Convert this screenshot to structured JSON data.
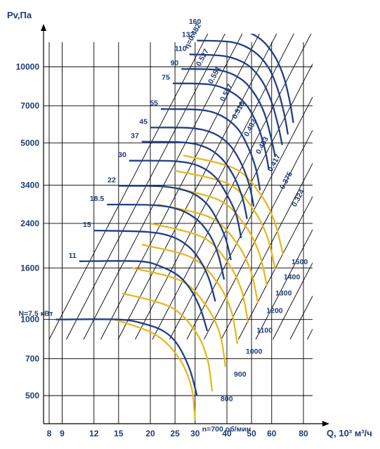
{
  "chart_data": {
    "type": "line",
    "title": "",
    "xlabel": "Q, 10³ м³/ч",
    "ylabel": "Pv,Па",
    "x_scale": "log",
    "y_scale": "log",
    "xlim": [
      7.8,
      88
    ],
    "ylim": [
      400,
      15000
    ],
    "x_ticks": [
      8,
      9,
      12,
      15,
      20,
      25,
      30,
      40,
      50,
      60,
      80
    ],
    "y_ticks": [
      500,
      700,
      1000,
      1600,
      2400,
      3400,
      5000,
      7000,
      10000
    ],
    "grid": true,
    "speed_curves": {
      "unit": "об/мин",
      "items": [
        {
          "n": 700,
          "label": "n=700 об/мин",
          "points": [
            [
              14.5,
              1000
            ],
            [
              21,
              870
            ],
            [
              26,
              700
            ],
            [
              29,
              540
            ],
            [
              30,
              400
            ]
          ]
        },
        {
          "n": 800,
          "label": "800",
          "points": [
            [
              15.5,
              1270
            ],
            [
              24,
              1120
            ],
            [
              30,
              900
            ],
            [
              33.5,
              700
            ],
            [
              35,
              520
            ]
          ]
        },
        {
          "n": 900,
          "label": "900",
          "points": [
            [
              17,
              1600
            ],
            [
              26.5,
              1420
            ],
            [
              33,
              1140
            ],
            [
              37.5,
              880
            ],
            [
              39.5,
              650
            ]
          ]
        },
        {
          "n": 1000,
          "label": "1000",
          "points": [
            [
              18.5,
              1980
            ],
            [
              29,
              1760
            ],
            [
              36.5,
              1410
            ],
            [
              41.5,
              1090
            ],
            [
              44,
              800
            ]
          ]
        },
        {
          "n": 1100,
          "label": "1100",
          "points": [
            [
              20,
              2400
            ],
            [
              32,
              2120
            ],
            [
              40,
              1700
            ],
            [
              45.5,
              1320
            ],
            [
              48.5,
              970
            ]
          ]
        },
        {
          "n": 1200,
          "label": "1200",
          "points": [
            [
              21.5,
              2850
            ],
            [
              34.5,
              2530
            ],
            [
              43.5,
              2020
            ],
            [
              49.5,
              1570
            ],
            [
              53,
              1160
            ]
          ]
        },
        {
          "n": 1300,
          "label": "1300",
          "points": [
            [
              23.5,
              3350
            ],
            [
              37.5,
              2960
            ],
            [
              47,
              2370
            ],
            [
              53.5,
              1840
            ],
            [
              57.5,
              1360
            ]
          ]
        },
        {
          "n": 1400,
          "label": "1400",
          "points": [
            [
              25,
              3880
            ],
            [
              40.5,
              3440
            ],
            [
              50.5,
              2750
            ],
            [
              57.5,
              2140
            ],
            [
              62,
              1580
            ]
          ]
        },
        {
          "n": 1500,
          "label": "1500",
          "points": [
            [
              27,
              4460
            ],
            [
              43,
              3950
            ],
            [
              54,
              3150
            ],
            [
              61.5,
              2450
            ],
            [
              66.5,
              1810
            ]
          ]
        }
      ]
    },
    "power_curves": {
      "unit": "кВт",
      "items": [
        {
          "N": 7.5,
          "label": "N=7,5 кВт",
          "points": [
            [
              8.5,
              1000
            ],
            [
              15,
              1000
            ],
            [
              19,
              960
            ],
            [
              22.5,
              900
            ],
            [
              25.5,
              800
            ],
            [
              28.5,
              640
            ],
            [
              30.5,
              500
            ]
          ]
        },
        {
          "N": 11,
          "label": "11",
          "points": [
            [
              10.5,
              1700
            ],
            [
              18,
              1700
            ],
            [
              22,
              1620
            ],
            [
              26,
              1480
            ],
            [
              29,
              1300
            ],
            [
              31.5,
              1100
            ],
            [
              33.5,
              900
            ]
          ]
        },
        {
          "N": 15,
          "label": "15",
          "points": [
            [
              12,
              2250
            ],
            [
              19.5,
              2220
            ],
            [
              24.5,
              2120
            ],
            [
              28.5,
              1930
            ],
            [
              31.5,
              1700
            ],
            [
              34,
              1450
            ],
            [
              36,
              1180
            ]
          ]
        },
        {
          "N": 18.5,
          "label": "18.5",
          "points": [
            [
              13.5,
              2850
            ],
            [
              21,
              2830
            ],
            [
              26.5,
              2700
            ],
            [
              31,
              2450
            ],
            [
              34.5,
              2130
            ],
            [
              37,
              1800
            ],
            [
              39,
              1440
            ]
          ]
        },
        {
          "N": 22,
          "label": "22",
          "points": [
            [
              15,
              3380
            ],
            [
              22.5,
              3360
            ],
            [
              28.5,
              3200
            ],
            [
              33,
              2900
            ],
            [
              36.5,
              2500
            ],
            [
              39.5,
              2100
            ],
            [
              41.5,
              1720
            ]
          ]
        },
        {
          "N": 30,
          "label": "30",
          "points": [
            [
              16.5,
              4250
            ],
            [
              25,
              4230
            ],
            [
              31,
              4050
            ],
            [
              36,
              3660
            ],
            [
              40,
              3120
            ],
            [
              43.5,
              2600
            ],
            [
              45.5,
              2100
            ]
          ]
        },
        {
          "N": 37,
          "label": "37",
          "points": [
            [
              18.5,
              5050
            ],
            [
              27,
              5020
            ],
            [
              33,
              4800
            ],
            [
              38,
              4350
            ],
            [
              42.5,
              3700
            ],
            [
              46,
              3040
            ],
            [
              48,
              2500
            ]
          ]
        },
        {
          "N": 45,
          "label": "45",
          "points": [
            [
              20,
              5750
            ],
            [
              29,
              5720
            ],
            [
              35.5,
              5450
            ],
            [
              41,
              4900
            ],
            [
              45.5,
              4150
            ],
            [
              49,
              3400
            ],
            [
              51,
              2800
            ]
          ]
        },
        {
          "N": 55,
          "label": "55",
          "points": [
            [
              22,
              6800
            ],
            [
              31.5,
              6750
            ],
            [
              38,
              6400
            ],
            [
              44,
              5700
            ],
            [
              48.5,
              4800
            ],
            [
              52,
              3950
            ],
            [
              54,
              3250
            ]
          ]
        },
        {
          "N": 75,
          "label": "75",
          "points": [
            [
              24.5,
              8600
            ],
            [
              34.5,
              8500
            ],
            [
              42,
              7900
            ],
            [
              48,
              7000
            ],
            [
              53,
              5800
            ],
            [
              56.5,
              4700
            ],
            [
              58.5,
              3900
            ]
          ]
        },
        {
          "N": 90,
          "label": "90",
          "points": [
            [
              26.5,
              9800
            ],
            [
              37,
              9700
            ],
            [
              45,
              9000
            ],
            [
              51,
              7900
            ],
            [
              56,
              6600
            ],
            [
              59.5,
              5300
            ],
            [
              62,
              4400
            ]
          ]
        },
        {
          "N": 110,
          "label": "110",
          "points": [
            [
              28.5,
              11200
            ],
            [
              39.5,
              11000
            ],
            [
              48,
              10200
            ],
            [
              54.5,
              8900
            ],
            [
              59.5,
              7400
            ],
            [
              63.5,
              5900
            ],
            [
              66,
              4900
            ]
          ]
        },
        {
          "N": 132,
          "label": "132",
          "points": [
            [
              30.5,
              12700
            ],
            [
              42,
              12500
            ],
            [
              51,
              11500
            ],
            [
              58,
              10000
            ],
            [
              63,
              8300
            ],
            [
              67,
              6600
            ],
            [
              69.5,
              5400
            ]
          ]
        },
        {
          "N": 160,
          "label": "160",
          "points": [
            [
              32.5,
              14300
            ],
            [
              45,
              14000
            ],
            [
              54,
              12900
            ],
            [
              61,
              11200
            ],
            [
              66.5,
              9300
            ],
            [
              70.5,
              7400
            ],
            [
              73,
              6000
            ]
          ]
        }
      ]
    },
    "efficiency_labels": [
      "η=0.482",
      "0.527",
      "0.551",
      "0.557",
      "0.516",
      "0.483",
      "0.453",
      "0.417",
      "0.375",
      "0.324"
    ]
  },
  "colors": {
    "speed_curve": "#e6b820",
    "power_curve": "#213e86",
    "text": "#1f3a75",
    "grid": "#000000"
  }
}
